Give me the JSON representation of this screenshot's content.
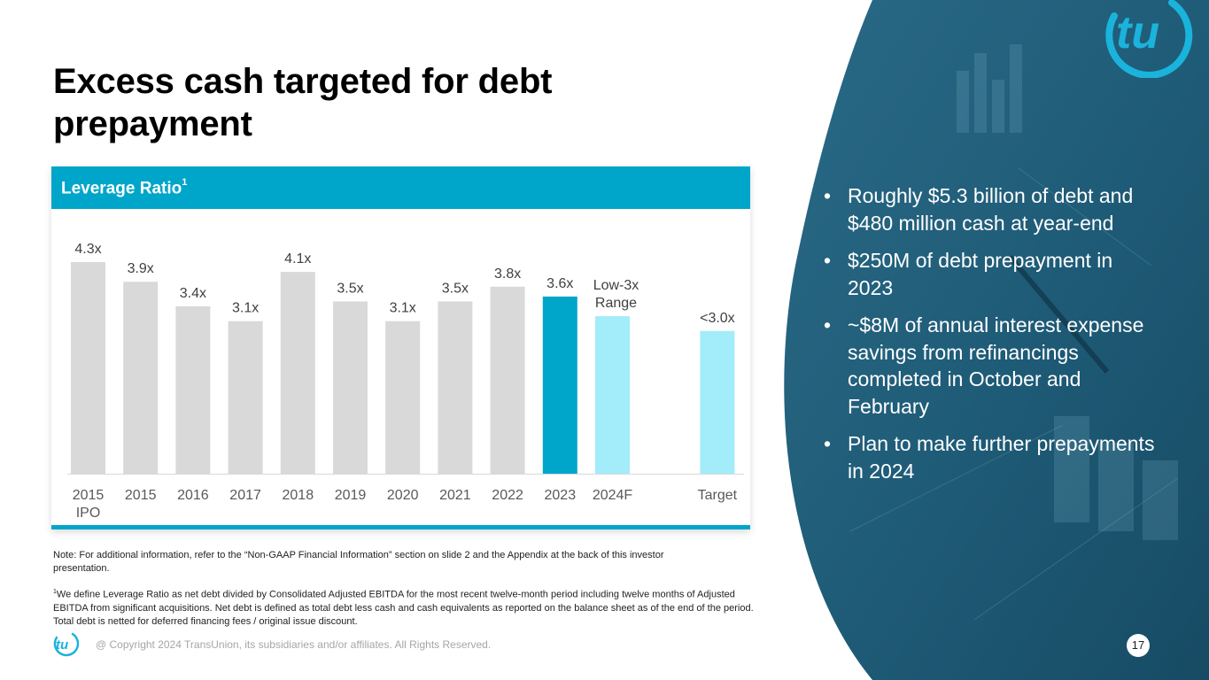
{
  "slide": {
    "title": "Excess cash targeted for debt prepayment",
    "page_number": "17",
    "copyright": "@ Copyright 2024 TransUnion, its subsidiaries and/or affiliates.  All Rights Reserved.",
    "brand_colors": {
      "primary": "#00a6ca",
      "light": "#a3ecf9",
      "gray": "#d9d9d9",
      "panel": "#1f5c78"
    }
  },
  "chart_header": {
    "title": "Leverage Ratio",
    "superscript": "1"
  },
  "bullets": [
    "Roughly $5.3 billion of debt and $480 million cash at year-end",
    "$250M of debt prepayment in 2023",
    "~$8M of annual interest expense savings from refinancings completed in October and February",
    "Plan to make further prepayments in 2024"
  ],
  "bullet_glyph": "•",
  "note": "Note: For additional information, refer to the “Non-GAAP Financial Information” section on slide 2 and the Appendix at the back of this investor presentation.",
  "footnote": {
    "marker": "1",
    "text": "We define Leverage Ratio as net debt divided by Consolidated Adjusted EBITDA for the most recent twelve-month period including twelve months of Adjusted EBITDA from significant acquisitions. Net debt is defined as total debt less cash and cash equivalents as reported on the balance sheet as of the end of the period. Total debt is netted for deferred financing fees / original issue discount."
  },
  "logos": {
    "brand_mark": "tu"
  },
  "chart_data": {
    "type": "bar",
    "title": "Leverage Ratio",
    "xlabel": "",
    "ylabel": "",
    "ylim": [
      0,
      4.5
    ],
    "grid": false,
    "legend": "none",
    "categories": [
      "2015 IPO",
      "2015",
      "2016",
      "2017",
      "2018",
      "2019",
      "2020",
      "2021",
      "2022",
      "2023",
      "2024F",
      "",
      "Target"
    ],
    "category_lines": [
      [
        "2015",
        "IPO"
      ],
      [
        "2015"
      ],
      [
        "2016"
      ],
      [
        "2017"
      ],
      [
        "2018"
      ],
      [
        "2019"
      ],
      [
        "2020"
      ],
      [
        "2021"
      ],
      [
        "2022"
      ],
      [
        "2023"
      ],
      [
        "2024F"
      ],
      [
        ""
      ],
      [
        "Target"
      ]
    ],
    "values": [
      4.3,
      3.9,
      3.4,
      3.1,
      4.1,
      3.5,
      3.1,
      3.5,
      3.8,
      3.6,
      3.2,
      null,
      2.9
    ],
    "labels": [
      [
        "4.3x"
      ],
      [
        "3.9x"
      ],
      [
        "3.4x"
      ],
      [
        "3.1x"
      ],
      [
        "4.1x"
      ],
      [
        "3.5x"
      ],
      [
        "3.1x"
      ],
      [
        "3.5x"
      ],
      [
        "3.8x"
      ],
      [
        "3.6x"
      ],
      [
        "Low-3x",
        "Range"
      ],
      [
        ""
      ],
      [
        "<3.0x"
      ]
    ],
    "bar_kinds": [
      "historical",
      "historical",
      "historical",
      "historical",
      "historical",
      "historical",
      "historical",
      "historical",
      "historical",
      "current",
      "forecast",
      "gap",
      "forecast"
    ],
    "colors": {
      "historical": "#d9d9d9",
      "current": "#00a6ca",
      "forecast": "#a3ecf9"
    }
  }
}
